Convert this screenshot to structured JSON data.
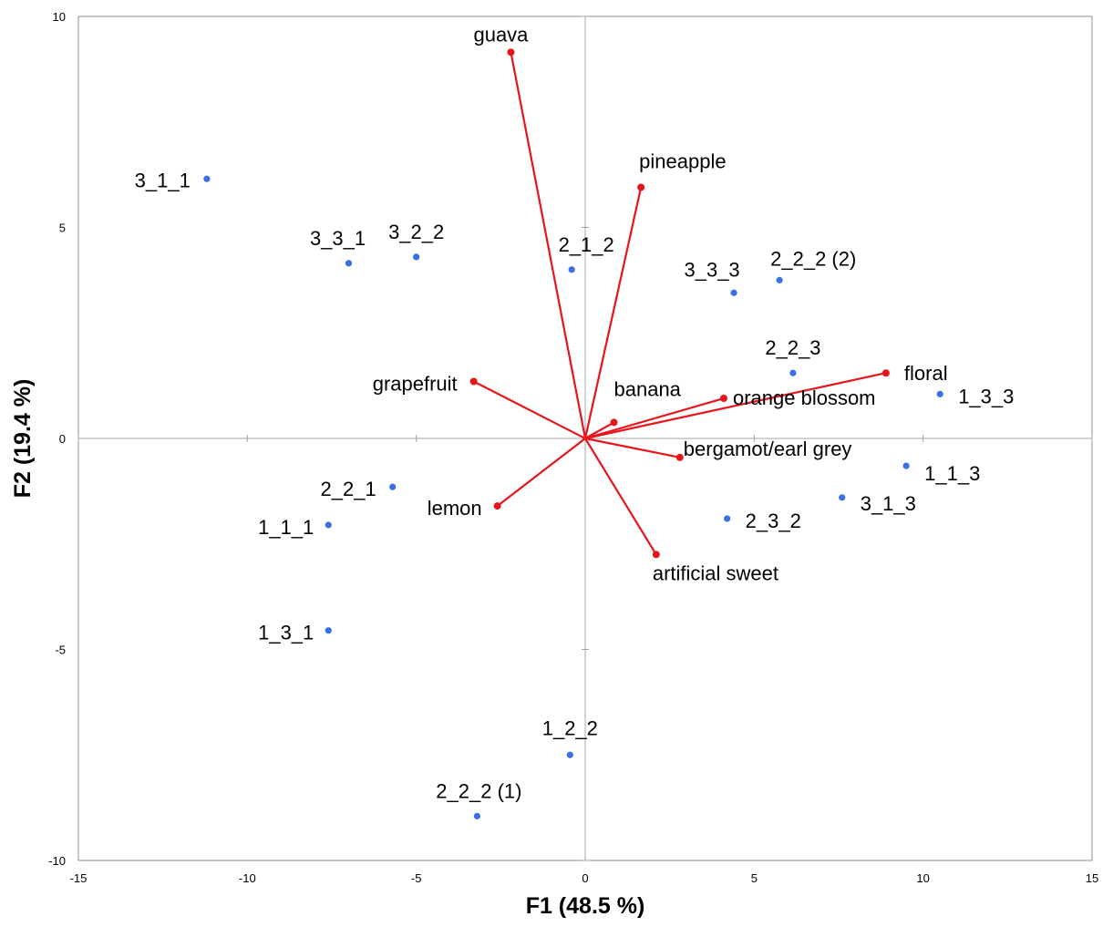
{
  "chart_data": {
    "type": "scatter",
    "title": "",
    "xlabel": "F1 (48.5 %)",
    "ylabel": "F2 (19.4 %)",
    "xlim": [
      -15,
      15
    ],
    "ylim": [
      -10,
      10
    ],
    "x_ticks": [
      "-15",
      "-10",
      "-5",
      "0",
      "5",
      "10",
      "15"
    ],
    "y_ticks": [
      "-10",
      "-5",
      "0",
      "5",
      "10"
    ],
    "grid": false,
    "legend": "none",
    "colors": {
      "observations": "#3a6fe8",
      "variables": "#e8141b",
      "axis": "#a6a6a6",
      "frame": "#8c8c8c"
    },
    "observations": [
      {
        "label": "3_1_1",
        "x": -11.2,
        "y": 6.15,
        "anchor": "end",
        "dx": -18,
        "dy": 9
      },
      {
        "label": "3_3_1",
        "x": -7.0,
        "y": 4.15,
        "anchor": "middle",
        "dx": -12,
        "dy": -20
      },
      {
        "label": "3_2_2",
        "x": -5.0,
        "y": 4.3,
        "anchor": "middle",
        "dx": 0,
        "dy": -20
      },
      {
        "label": "2_1_2",
        "x": -0.4,
        "y": 4.0,
        "anchor": "middle",
        "dx": 16,
        "dy": -20
      },
      {
        "label": "3_3_3",
        "x": 4.4,
        "y": 3.45,
        "anchor": "middle",
        "dx": -24,
        "dy": -18
      },
      {
        "label": "2_2_2 (2)",
        "x": 5.75,
        "y": 3.75,
        "anchor": "start",
        "dx": -10,
        "dy": -16
      },
      {
        "label": "2_2_3",
        "x": 6.15,
        "y": 1.55,
        "anchor": "middle",
        "dx": 0,
        "dy": -20
      },
      {
        "label": "1_3_3",
        "x": 10.5,
        "y": 1.05,
        "anchor": "start",
        "dx": 20,
        "dy": 10
      },
      {
        "label": "1_1_3",
        "x": 9.5,
        "y": -0.65,
        "anchor": "start",
        "dx": 20,
        "dy": 16
      },
      {
        "label": "3_1_3",
        "x": 7.6,
        "y": -1.4,
        "anchor": "start",
        "dx": 20,
        "dy": 14
      },
      {
        "label": "2_3_2",
        "x": 4.2,
        "y": -1.9,
        "anchor": "start",
        "dx": 20,
        "dy": 10
      },
      {
        "label": "2_2_1",
        "x": -5.7,
        "y": -1.15,
        "anchor": "end",
        "dx": -18,
        "dy": 10
      },
      {
        "label": "1_1_1",
        "x": -7.6,
        "y": -2.05,
        "anchor": "end",
        "dx": -16,
        "dy": 10
      },
      {
        "label": "1_3_1",
        "x": -7.6,
        "y": -4.55,
        "anchor": "end",
        "dx": -16,
        "dy": 10
      },
      {
        "label": "1_2_2",
        "x": -0.45,
        "y": -7.5,
        "anchor": "middle",
        "dx": 0,
        "dy": -22
      },
      {
        "label": "2_2_2 (1)",
        "x": -3.2,
        "y": -8.95,
        "anchor": "middle",
        "dx": 2,
        "dy": -20
      }
    ],
    "variables": [
      {
        "label": "guava",
        "x": -2.2,
        "y": 9.15,
        "anchor": "middle",
        "dx": -11,
        "dy": -12
      },
      {
        "label": "pineapple",
        "x": 1.65,
        "y": 5.95,
        "anchor": "start",
        "dx": -2,
        "dy": -21
      },
      {
        "label": "grapefruit",
        "x": -3.3,
        "y": 1.35,
        "anchor": "end",
        "dx": -18,
        "dy": 10
      },
      {
        "label": "banana",
        "x": 0.85,
        "y": 0.38,
        "anchor": "start",
        "dx": 0,
        "dy": -29
      },
      {
        "label": "orange blossom",
        "x": 4.1,
        "y": 0.95,
        "anchor": "start",
        "dx": 10,
        "dy": 7
      },
      {
        "label": "floral",
        "x": 8.9,
        "y": 1.55,
        "anchor": "start",
        "dx": 20,
        "dy": 8
      },
      {
        "label": "bergamot/earl grey",
        "x": 2.8,
        "y": -0.45,
        "anchor": "start",
        "dx": 4,
        "dy": -2
      },
      {
        "label": "lemon",
        "x": -2.6,
        "y": -1.6,
        "anchor": "end",
        "dx": -17,
        "dy": 10
      },
      {
        "label": "artificial sweet",
        "x": 2.1,
        "y": -2.75,
        "anchor": "start",
        "dx": -4,
        "dy": 28
      }
    ]
  }
}
